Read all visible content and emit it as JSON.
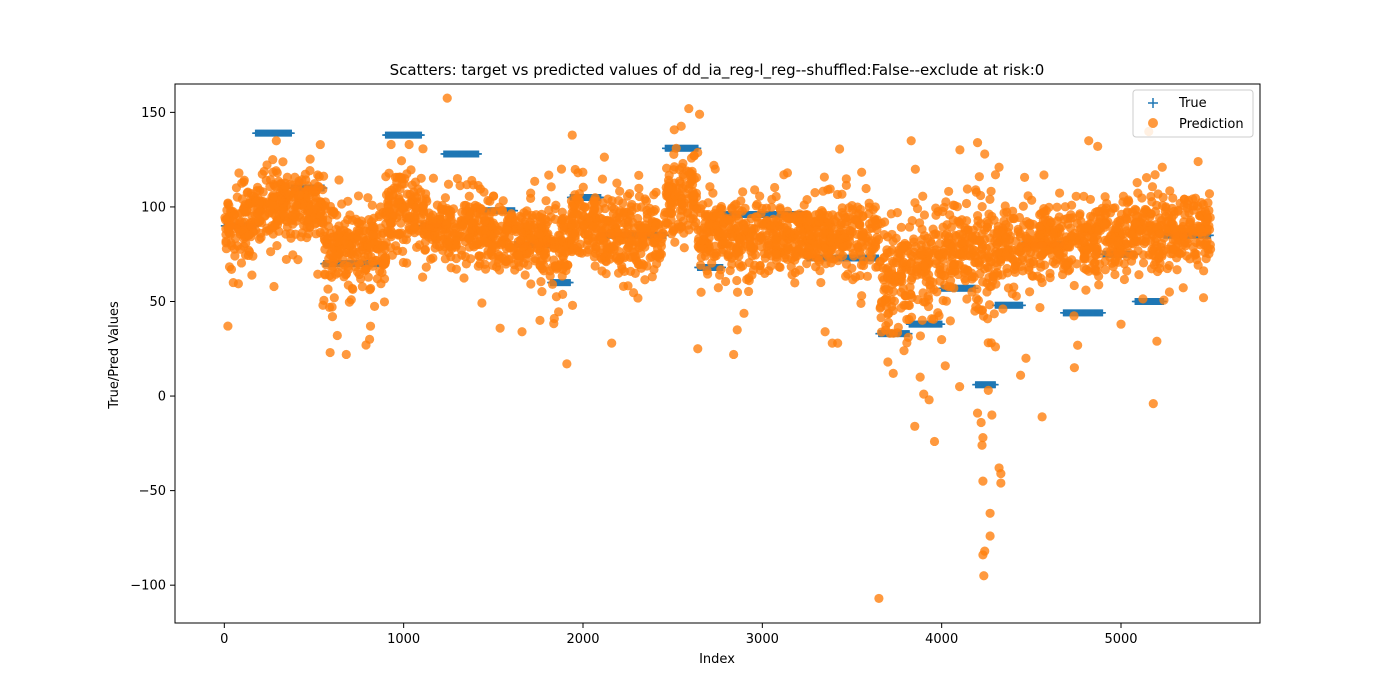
{
  "chart_data": {
    "type": "scatter",
    "title": "Scatters: target vs predicted values of dd_ia_reg-l_reg--shuffled:False--exclude at risk:0",
    "xlabel": "Index",
    "ylabel": "True/Pred Values",
    "xlim": [
      -275,
      5775
    ],
    "ylim": [
      -120,
      165
    ],
    "xticks": [
      0,
      1000,
      2000,
      3000,
      4000,
      5000
    ],
    "yticks": [
      -100,
      -50,
      0,
      50,
      100,
      150
    ],
    "xtick_labels": [
      "0",
      "1000",
      "2000",
      "3000",
      "4000",
      "5000"
    ],
    "ytick_labels": [
      "−100",
      "−50",
      "0",
      "50",
      "100",
      "150"
    ],
    "grid": false,
    "legend_position": "top-right",
    "colors": {
      "true": "#1f77b4",
      "prediction": "#ff7f0e"
    },
    "series": [
      {
        "name": "True",
        "marker": "plus",
        "segments": [
          {
            "x": [
              0,
              175
            ],
            "y": 90
          },
          {
            "x": [
              175,
              375
            ],
            "y": 139
          },
          {
            "x": [
              375,
              555
            ],
            "y": 110
          },
          {
            "x": [
              555,
              900
            ],
            "y": 70
          },
          {
            "x": [
              900,
              1100
            ],
            "y": 138
          },
          {
            "x": [
              1100,
              1225
            ],
            "y": 90
          },
          {
            "x": [
              1225,
              1420
            ],
            "y": 128
          },
          {
            "x": [
              1420,
              1620
            ],
            "y": 98
          },
          {
            "x": [
              1620,
              1820
            ],
            "y": 80
          },
          {
            "x": [
              1820,
              1930
            ],
            "y": 60
          },
          {
            "x": [
              1930,
              2100
            ],
            "y": 105
          },
          {
            "x": [
              2100,
              2460
            ],
            "y": 85
          },
          {
            "x": [
              2460,
              2640
            ],
            "y": 131
          },
          {
            "x": [
              2640,
              2780
            ],
            "y": 68
          },
          {
            "x": [
              2780,
              3250
            ],
            "y": 96
          },
          {
            "x": [
              3250,
              3650
            ],
            "y": 73
          },
          {
            "x": [
              3650,
              3820
            ],
            "y": 33
          },
          {
            "x": [
              3820,
              4000
            ],
            "y": 38
          },
          {
            "x": [
              4000,
              4190
            ],
            "y": 57
          },
          {
            "x": [
              4190,
              4300
            ],
            "y": 6
          },
          {
            "x": [
              4300,
              4450
            ],
            "y": 48
          },
          {
            "x": [
              4450,
              4680
            ],
            "y": 80
          },
          {
            "x": [
              4680,
              4900
            ],
            "y": 44
          },
          {
            "x": [
              4900,
              5080
            ],
            "y": 75
          },
          {
            "x": [
              5080,
              5240
            ],
            "y": 50
          },
          {
            "x": [
              5240,
              5500
            ],
            "y": 85
          }
        ]
      },
      {
        "name": "Prediction",
        "marker": "circle",
        "clusters": [
          {
            "x": [
              0,
              175
            ],
            "center": 93,
            "spread": 10,
            "count": 110
          },
          {
            "x": [
              175,
              375
            ],
            "center": 100,
            "spread": 9,
            "count": 130
          },
          {
            "x": [
              375,
              555
            ],
            "center": 100,
            "spread": 9,
            "count": 120
          },
          {
            "x": [
              555,
              900
            ],
            "center": 78,
            "spread": 12,
            "count": 220
          },
          {
            "x": [
              900,
              1100
            ],
            "center": 97,
            "spread": 10,
            "count": 130
          },
          {
            "x": [
              1100,
              1225
            ],
            "center": 88,
            "spread": 9,
            "count": 80
          },
          {
            "x": [
              1225,
              1420
            ],
            "center": 87,
            "spread": 9,
            "count": 120
          },
          {
            "x": [
              1420,
              1620
            ],
            "center": 84,
            "spread": 10,
            "count": 130
          },
          {
            "x": [
              1620,
              1820
            ],
            "center": 82,
            "spread": 11,
            "count": 130
          },
          {
            "x": [
              1820,
              1930
            ],
            "center": 78,
            "spread": 11,
            "count": 70
          },
          {
            "x": [
              1930,
              2100
            ],
            "center": 92,
            "spread": 9,
            "count": 110
          },
          {
            "x": [
              2100,
              2460
            ],
            "center": 85,
            "spread": 10,
            "count": 220
          },
          {
            "x": [
              2460,
              2640
            ],
            "center": 105,
            "spread": 10,
            "count": 120
          },
          {
            "x": [
              2640,
              2780
            ],
            "center": 85,
            "spread": 9,
            "count": 90
          },
          {
            "x": [
              2780,
              3250
            ],
            "center": 84,
            "spread": 10,
            "count": 280
          },
          {
            "x": [
              3250,
              3650
            ],
            "center": 84,
            "spread": 10,
            "count": 240
          },
          {
            "x": [
              3650,
              3820
            ],
            "center": 65,
            "spread": 15,
            "count": 110
          },
          {
            "x": [
              3820,
              4000
            ],
            "center": 70,
            "spread": 15,
            "count": 110
          },
          {
            "x": [
              4000,
              4190
            ],
            "center": 78,
            "spread": 13,
            "count": 120
          },
          {
            "x": [
              4190,
              4300
            ],
            "center": 70,
            "spread": 18,
            "count": 70
          },
          {
            "x": [
              4300,
              4450
            ],
            "center": 78,
            "spread": 12,
            "count": 90
          },
          {
            "x": [
              4450,
              4680
            ],
            "center": 82,
            "spread": 10,
            "count": 140
          },
          {
            "x": [
              4680,
              4900
            ],
            "center": 82,
            "spread": 10,
            "count": 130
          },
          {
            "x": [
              4900,
              5080
            ],
            "center": 84,
            "spread": 10,
            "count": 110
          },
          {
            "x": [
              5080,
              5240
            ],
            "center": 86,
            "spread": 10,
            "count": 100
          },
          {
            "x": [
              5240,
              5500
            ],
            "center": 88,
            "spread": 9,
            "count": 150
          }
        ],
        "outliers": [
          {
            "x": 20,
            "y": 37
          },
          {
            "x": 40,
            "y": 67
          },
          {
            "x": 50,
            "y": 60
          },
          {
            "x": 270,
            "y": 125
          },
          {
            "x": 290,
            "y": 135
          },
          {
            "x": 590,
            "y": 23
          },
          {
            "x": 680,
            "y": 22
          },
          {
            "x": 630,
            "y": 32
          },
          {
            "x": 790,
            "y": 27
          },
          {
            "x": 810,
            "y": 30
          },
          {
            "x": 550,
            "y": 48
          },
          {
            "x": 930,
            "y": 133
          },
          {
            "x": 1250,
            "y": 112
          },
          {
            "x": 1300,
            "y": 115
          },
          {
            "x": 1380,
            "y": 114
          },
          {
            "x": 1660,
            "y": 34
          },
          {
            "x": 1760,
            "y": 40
          },
          {
            "x": 1840,
            "y": 41
          },
          {
            "x": 1880,
            "y": 120
          },
          {
            "x": 1910,
            "y": 17
          },
          {
            "x": 1940,
            "y": 138
          },
          {
            "x": 2160,
            "y": 28
          },
          {
            "x": 2520,
            "y": 131
          },
          {
            "x": 2590,
            "y": 152
          },
          {
            "x": 2650,
            "y": 149
          },
          {
            "x": 2640,
            "y": 25
          },
          {
            "x": 2730,
            "y": 122
          },
          {
            "x": 2840,
            "y": 22
          },
          {
            "x": 2860,
            "y": 35
          },
          {
            "x": 3120,
            "y": 117
          },
          {
            "x": 3140,
            "y": 118
          },
          {
            "x": 3350,
            "y": 34
          },
          {
            "x": 3390,
            "y": 28
          },
          {
            "x": 3420,
            "y": 28
          },
          {
            "x": 3550,
            "y": 49
          },
          {
            "x": 3650,
            "y": -107
          },
          {
            "x": 3700,
            "y": 18
          },
          {
            "x": 3730,
            "y": 12
          },
          {
            "x": 3790,
            "y": 24
          },
          {
            "x": 3830,
            "y": 135
          },
          {
            "x": 3850,
            "y": -16
          },
          {
            "x": 3900,
            "y": 1
          },
          {
            "x": 3930,
            "y": -2
          },
          {
            "x": 3960,
            "y": -24
          },
          {
            "x": 3880,
            "y": 10
          },
          {
            "x": 4020,
            "y": 16
          },
          {
            "x": 4100,
            "y": 5
          },
          {
            "x": 4200,
            "y": 134
          },
          {
            "x": 4190,
            "y": 109
          },
          {
            "x": 4210,
            "y": 116
          },
          {
            "x": 4240,
            "y": 128
          },
          {
            "x": 4300,
            "y": 117
          },
          {
            "x": 4320,
            "y": 121
          },
          {
            "x": 4200,
            "y": -9
          },
          {
            "x": 4220,
            "y": -14
          },
          {
            "x": 4230,
            "y": -22
          },
          {
            "x": 4225,
            "y": -26
          },
          {
            "x": 4230,
            "y": -45
          },
          {
            "x": 4240,
            "y": -82
          },
          {
            "x": 4230,
            "y": -84
          },
          {
            "x": 4235,
            "y": -95
          },
          {
            "x": 4270,
            "y": -62
          },
          {
            "x": 4270,
            "y": -74
          },
          {
            "x": 4320,
            "y": -38
          },
          {
            "x": 4330,
            "y": -41
          },
          {
            "x": 4330,
            "y": -46
          },
          {
            "x": 4280,
            "y": -10
          },
          {
            "x": 4260,
            "y": 3
          },
          {
            "x": 4300,
            "y": 26
          },
          {
            "x": 4440,
            "y": 11
          },
          {
            "x": 4470,
            "y": 20
          },
          {
            "x": 4560,
            "y": -11
          },
          {
            "x": 4740,
            "y": 15
          },
          {
            "x": 4820,
            "y": 135
          },
          {
            "x": 4870,
            "y": 132
          },
          {
            "x": 5000,
            "y": 38
          },
          {
            "x": 5180,
            "y": -4
          },
          {
            "x": 5200,
            "y": 29
          },
          {
            "x": 5190,
            "y": 117
          },
          {
            "x": 5230,
            "y": 121
          },
          {
            "x": 5270,
            "y": 55
          },
          {
            "x": 5430,
            "y": 124
          },
          {
            "x": 5460,
            "y": 52
          }
        ]
      }
    ]
  }
}
